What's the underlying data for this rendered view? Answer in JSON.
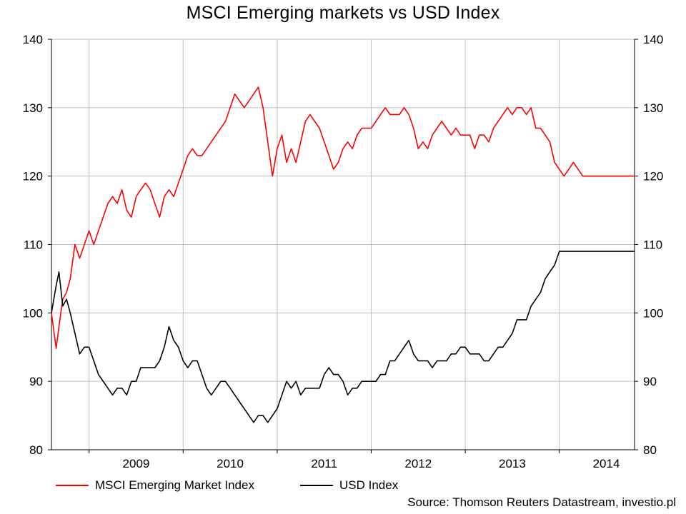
{
  "title": "MSCI Emerging markets vs USD Index",
  "source": "Source: Thomson Reuters Datastream, investio.pl",
  "chart_data": {
    "type": "line",
    "title": "MSCI Emerging markets vs USD Index",
    "xlabel": "",
    "ylabel": "",
    "x_range": [
      2008.6,
      2014.8
    ],
    "ylim": [
      80,
      140
    ],
    "y_ticks": [
      80,
      90,
      100,
      110,
      120,
      130,
      140
    ],
    "y2_ticks": [
      80,
      90,
      100,
      110,
      120,
      130,
      140
    ],
    "x_tick_labels": [
      "2009",
      "2010",
      "2011",
      "2012",
      "2013",
      "2014"
    ],
    "x_tick_positions": [
      2009.5,
      2010.5,
      2011.5,
      2012.5,
      2013.5,
      2014.5
    ],
    "grid": true,
    "legend_position": "bottom",
    "series": [
      {
        "name": "MSCI Emerging Market Index",
        "color": "#ff0000",
        "x": [
          2008.6,
          2008.65,
          2008.68,
          2008.72,
          2008.76,
          2008.8,
          2008.85,
          2008.9,
          2008.95,
          2009.0,
          2009.05,
          2009.1,
          2009.15,
          2009.2,
          2009.25,
          2009.3,
          2009.35,
          2009.4,
          2009.45,
          2009.5,
          2009.55,
          2009.6,
          2009.65,
          2009.7,
          2009.75,
          2009.8,
          2009.85,
          2009.9,
          2009.95,
          2010.0,
          2010.05,
          2010.1,
          2010.15,
          2010.2,
          2010.25,
          2010.3,
          2010.35,
          2010.4,
          2010.45,
          2010.5,
          2010.55,
          2010.6,
          2010.65,
          2010.7,
          2010.75,
          2010.8,
          2010.85,
          2010.9,
          2010.95,
          2011.0,
          2011.05,
          2011.1,
          2011.15,
          2011.2,
          2011.25,
          2011.3,
          2011.35,
          2011.4,
          2011.45,
          2011.5,
          2011.55,
          2011.6,
          2011.65,
          2011.7,
          2011.75,
          2011.8,
          2011.85,
          2011.9,
          2011.95,
          2012.0,
          2012.05,
          2012.1,
          2012.15,
          2012.2,
          2012.25,
          2012.3,
          2012.35,
          2012.4,
          2012.45,
          2012.5,
          2012.55,
          2012.6,
          2012.65,
          2012.7,
          2012.75,
          2012.8,
          2012.85,
          2012.9,
          2012.95,
          2013.0,
          2013.05,
          2013.1,
          2013.15,
          2013.2,
          2013.25,
          2013.3,
          2013.35,
          2013.4,
          2013.45,
          2013.5,
          2013.55,
          2013.6,
          2013.65,
          2013.7,
          2013.75,
          2013.8,
          2013.85,
          2013.9,
          2013.95,
          2014.0,
          2014.05,
          2014.1,
          2014.15,
          2014.2,
          2014.25,
          2014.3,
          2014.35,
          2014.4,
          2014.45,
          2014.5,
          2014.55,
          2014.6,
          2014.65,
          2014.7,
          2014.75,
          2014.8
        ],
        "values": [
          100,
          94.8,
          98,
          102,
          103,
          105,
          110,
          108,
          110,
          112,
          110,
          112,
          114,
          116,
          117,
          116,
          118,
          115,
          114,
          117,
          118,
          119,
          118,
          116,
          114,
          117,
          118,
          117,
          119,
          121,
          123,
          124,
          123,
          123,
          124,
          125,
          126,
          127,
          128,
          130,
          132,
          131,
          130,
          131,
          132,
          133,
          130,
          125,
          120,
          124,
          126,
          122,
          124,
          122,
          125,
          128,
          129,
          128,
          127,
          125,
          123,
          121,
          122,
          124,
          125,
          124,
          126,
          127,
          127,
          127,
          128,
          129,
          130,
          129,
          129,
          129,
          130,
          129,
          127,
          124,
          125,
          124,
          126,
          127,
          128,
          127,
          126,
          127,
          126,
          126,
          126,
          124,
          126,
          126,
          125,
          127,
          128,
          129,
          130,
          129,
          130,
          130,
          129,
          130,
          127,
          127,
          126,
          125,
          122,
          121,
          120,
          121,
          122,
          121,
          120,
          120,
          120,
          120,
          120,
          120,
          120,
          120,
          120,
          120,
          120,
          120
        ]
      },
      {
        "name": "USD Index",
        "color": "#000000",
        "x": [
          2008.6,
          2008.65,
          2008.68,
          2008.72,
          2008.76,
          2008.8,
          2008.85,
          2008.9,
          2008.95,
          2009.0,
          2009.05,
          2009.1,
          2009.15,
          2009.2,
          2009.25,
          2009.3,
          2009.35,
          2009.4,
          2009.45,
          2009.5,
          2009.55,
          2009.6,
          2009.65,
          2009.7,
          2009.75,
          2009.8,
          2009.85,
          2009.9,
          2009.95,
          2010.0,
          2010.05,
          2010.1,
          2010.15,
          2010.2,
          2010.25,
          2010.3,
          2010.35,
          2010.4,
          2010.45,
          2010.5,
          2010.55,
          2010.6,
          2010.65,
          2010.7,
          2010.75,
          2010.8,
          2010.85,
          2010.9,
          2010.95,
          2011.0,
          2011.05,
          2011.1,
          2011.15,
          2011.2,
          2011.25,
          2011.3,
          2011.35,
          2011.4,
          2011.45,
          2011.5,
          2011.55,
          2011.6,
          2011.65,
          2011.7,
          2011.75,
          2011.8,
          2011.85,
          2011.9,
          2011.95,
          2012.0,
          2012.05,
          2012.1,
          2012.15,
          2012.2,
          2012.25,
          2012.3,
          2012.35,
          2012.4,
          2012.45,
          2012.5,
          2012.55,
          2012.6,
          2012.65,
          2012.7,
          2012.75,
          2012.8,
          2012.85,
          2012.9,
          2012.95,
          2013.0,
          2013.05,
          2013.1,
          2013.15,
          2013.2,
          2013.25,
          2013.3,
          2013.35,
          2013.4,
          2013.45,
          2013.5,
          2013.55,
          2013.6,
          2013.65,
          2013.7,
          2013.75,
          2013.8,
          2013.85,
          2013.9,
          2013.95,
          2014.0,
          2014.05,
          2014.1,
          2014.15,
          2014.2,
          2014.25,
          2014.3,
          2014.35,
          2014.4,
          2014.45,
          2014.5,
          2014.55,
          2014.6,
          2014.65,
          2014.7,
          2014.75,
          2014.8
        ],
        "values": [
          100,
          104,
          106,
          101,
          102,
          100,
          97,
          94,
          95,
          95,
          93,
          91,
          90,
          89,
          88,
          89,
          89,
          88,
          90,
          90,
          92,
          92,
          92,
          92,
          93,
          95,
          98,
          96,
          95,
          93,
          92,
          93,
          93,
          91,
          89,
          88,
          89,
          90,
          90,
          89,
          88,
          87,
          86,
          85,
          84,
          85,
          85,
          84,
          85,
          86,
          88,
          90,
          89,
          90,
          88,
          89,
          89,
          89,
          89,
          91,
          92,
          91,
          91,
          90,
          88,
          89,
          89,
          90,
          90,
          90,
          90,
          91,
          91,
          93,
          93,
          94,
          95,
          96,
          94,
          93,
          93,
          93,
          92,
          93,
          93,
          93,
          94,
          94,
          95,
          95,
          94,
          94,
          94,
          93,
          93,
          94,
          95,
          95,
          96,
          97,
          99,
          99,
          99,
          101,
          102,
          103,
          105,
          106,
          107,
          109,
          109,
          109,
          109,
          109,
          109,
          109,
          109,
          109,
          109,
          109,
          109,
          109,
          109,
          109,
          109,
          109
        ]
      }
    ]
  },
  "legend": [
    {
      "label": "MSCI Emerging Market Index",
      "color": "#ff0000"
    },
    {
      "label": "USD Index",
      "color": "#000000"
    }
  ]
}
